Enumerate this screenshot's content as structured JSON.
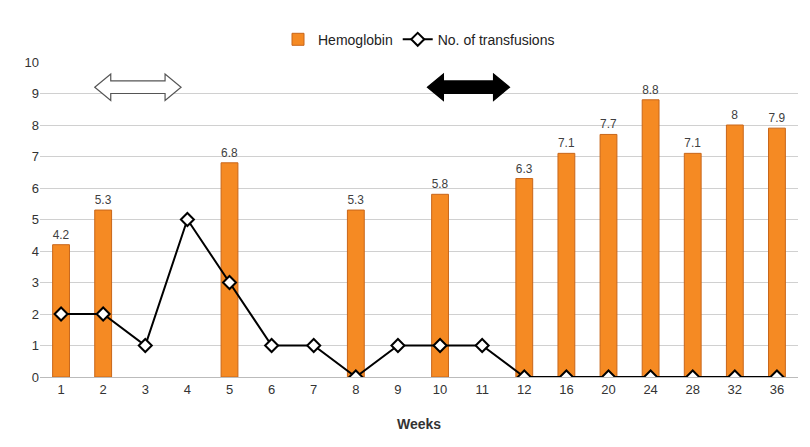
{
  "chart_data": {
    "type": "bar",
    "x_label": "Weeks",
    "categories": [
      "1",
      "2",
      "3",
      "4",
      "5",
      "6",
      "7",
      "8",
      "9",
      "10",
      "11",
      "12",
      "16",
      "20",
      "24",
      "28",
      "32",
      "36"
    ],
    "series": [
      {
        "name": "Hemoglobin",
        "type": "bar",
        "color": "#f58a23",
        "data_labels": true,
        "values": [
          4.2,
          5.3,
          null,
          null,
          6.8,
          null,
          null,
          5.3,
          null,
          5.8,
          null,
          6.3,
          7.1,
          7.7,
          8.8,
          7.1,
          8,
          7.9
        ]
      },
      {
        "name": "No. of transfusions",
        "type": "line",
        "color": "#000000",
        "marker": "diamond",
        "line_style": "solid",
        "values": [
          2,
          2,
          1,
          5,
          3,
          1,
          1,
          0,
          1,
          1,
          1,
          0,
          0,
          0,
          0,
          0,
          0,
          0
        ]
      }
    ],
    "ylim": [
      0,
      10
    ],
    "yticks": [
      0,
      1,
      2,
      3,
      4,
      5,
      6,
      7,
      8,
      9,
      10
    ],
    "grid": true,
    "legend": "top"
  }
}
